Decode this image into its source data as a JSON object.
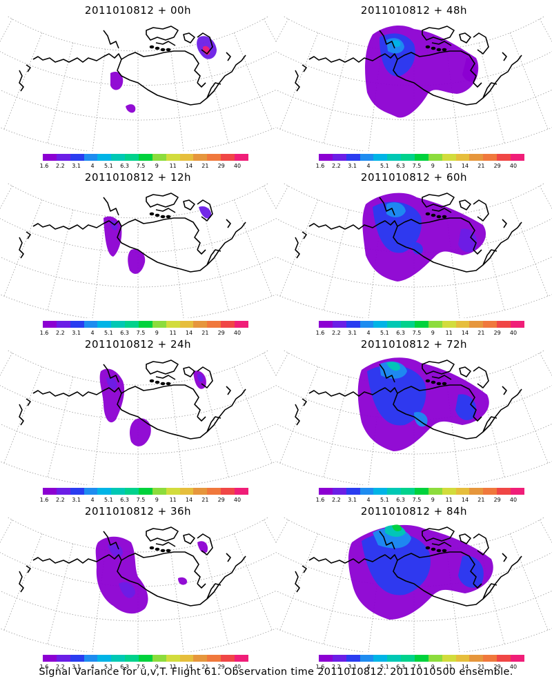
{
  "panels": [
    {
      "title": "2011010812 + 00h"
    },
    {
      "title": "2011010812 + 48h"
    },
    {
      "title": "2011010812 + 12h"
    },
    {
      "title": "2011010812 + 60h"
    },
    {
      "title": "2011010812 + 24h"
    },
    {
      "title": "2011010812 + 72h"
    },
    {
      "title": "2011010812 + 36h"
    },
    {
      "title": "2011010812 + 84h"
    }
  ],
  "colorbar": {
    "colors": [
      "#8c00d2",
      "#6b1ee6",
      "#2a3cf0",
      "#1e8cf0",
      "#00b4e6",
      "#00c8b4",
      "#00d28c",
      "#00d23c",
      "#8cdc3c",
      "#d2dc3c",
      "#e6be3c",
      "#e6963c",
      "#f0783c",
      "#f04646",
      "#f01e78"
    ],
    "labels": [
      "1.6",
      "2.2",
      "3.1",
      "4",
      "5.1",
      "6.3",
      "7.5",
      "9",
      "11",
      "14",
      "21",
      "29",
      "40"
    ]
  },
  "footer": "Signal Variance for u,v,T. Flight 61. Observation time 2011010812. 2011010500 ensemble."
}
